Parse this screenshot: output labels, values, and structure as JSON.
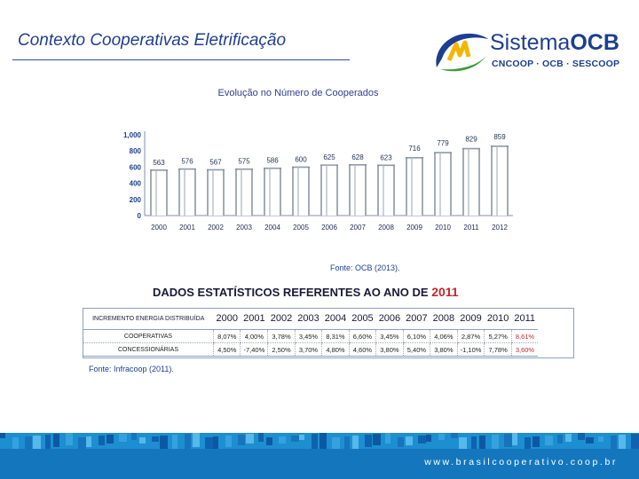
{
  "slide": {
    "title": "Contexto Cooperativas Eletrificação",
    "logo_name_a": "Sistema",
    "logo_name_b": "OCB",
    "logo_sub": "CNCOOP · OCB · SESCOOP",
    "footer_url": "www.brasilcooperativo.coop.br"
  },
  "chart_data": {
    "type": "bar",
    "title": "Evolução no Número de Cooperados",
    "categories": [
      "2000",
      "2001",
      "2002",
      "2003",
      "2004",
      "2005",
      "2006",
      "2007",
      "2008",
      "2009",
      "2010",
      "2011",
      "2012"
    ],
    "values": [
      563,
      576,
      567,
      575,
      586,
      600,
      625,
      628,
      623,
      716,
      779,
      829,
      859
    ],
    "value_labels": [
      "563",
      "576",
      "567",
      "575",
      "586",
      "600",
      "625",
      "628",
      "623",
      "716",
      "779",
      "829",
      "859"
    ],
    "yticks": [
      "0",
      "200",
      "400",
      "600",
      "800",
      "1,000"
    ],
    "ytick_values": [
      0,
      200,
      400,
      600,
      800,
      1000
    ],
    "ylim": [
      0,
      1000
    ],
    "source": "Fonte: OCB (2013)."
  },
  "stats": {
    "title_a": "DADOS ESTATÍSTICOS REFERENTES AO ANO DE ",
    "title_b": "2011",
    "header_label": "INCREMENTO ENERGIA DISTRIBUÍDA",
    "years": [
      "2000",
      "2001",
      "2002",
      "2003",
      "2004",
      "2005",
      "2006",
      "2007",
      "2008",
      "2009",
      "2010",
      "2011"
    ],
    "rows": [
      {
        "label": "COOPERATIVAS",
        "values": [
          "8,07%",
          "4,00%",
          "3,78%",
          "3,45%",
          "8,31%",
          "6,60%",
          "3,45%",
          "6,10%",
          "4,06%",
          "2,87%",
          "5,27%",
          "8,61%"
        ]
      },
      {
        "label": "CONCESSIONÁRIAS",
        "values": [
          "4,50%",
          "-7,40%",
          "2,50%",
          "3,70%",
          "4,80%",
          "4,60%",
          "3,80%",
          "5,40%",
          "3,80%",
          "-1,10%",
          "7,78%",
          "3,60%"
        ]
      }
    ],
    "source": "Fonte: Infracoop (2011)."
  }
}
